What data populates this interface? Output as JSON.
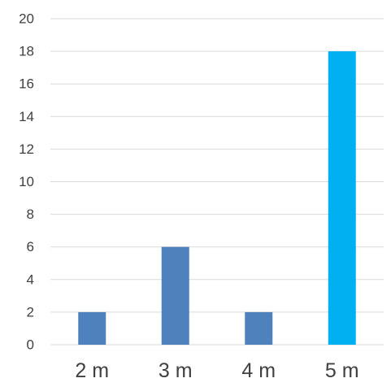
{
  "chart_data": {
    "type": "bar",
    "categories": [
      "2 m",
      "3 m",
      "4 m",
      "5 m"
    ],
    "values": [
      2,
      6,
      2,
      18
    ],
    "colors": [
      "#4f81bd",
      "#4f81bd",
      "#4f81bd",
      "#00b0f0"
    ],
    "ylim": [
      0,
      20
    ],
    "yticks": [
      "0",
      "2",
      "4",
      "6",
      "8",
      "10",
      "12",
      "14",
      "16",
      "18",
      "20"
    ],
    "grid": true,
    "legend": "none"
  }
}
